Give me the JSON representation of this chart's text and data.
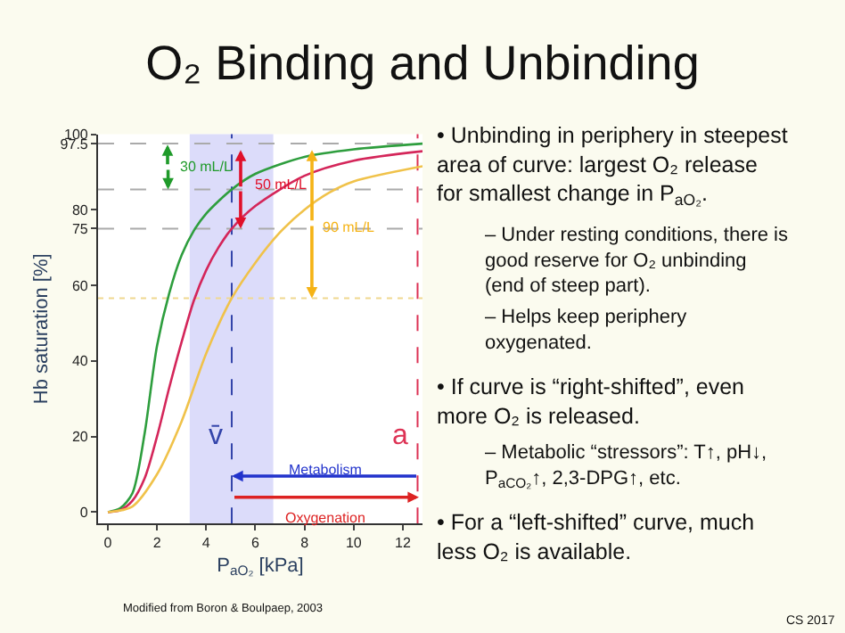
{
  "chart_data": {
    "type": "line",
    "title": "O₂ Binding and Unbinding",
    "xlabel": "P$_{aO₂}$ [kPa]",
    "ylabel": "Hb saturation [%]",
    "xlim": [
      -0.4,
      12.8
    ],
    "xticks": [
      0,
      2,
      4,
      6,
      8,
      10,
      12
    ],
    "ylim": [
      -3,
      100
    ],
    "yticks": [
      0,
      20,
      40,
      60,
      75,
      80,
      97.5,
      100
    ],
    "grid": false,
    "marker": "none",
    "line_style": "solid",
    "series": [
      {
        "color": "#2e9e3e",
        "x": [
          0,
          0.5,
          1,
          1.5,
          2,
          2.5,
          3,
          3.5,
          4,
          5.04,
          6,
          8,
          10,
          12.8
        ],
        "values": [
          0,
          1,
          5,
          21,
          44,
          58,
          68,
          74.5,
          79,
          85.4,
          89.5,
          94,
          96,
          97.5
        ]
      },
      {
        "color": "#d4265a",
        "x": [
          0,
          0.5,
          1,
          1.5,
          2,
          2.5,
          3,
          3.5,
          4,
          4.5,
          5.04,
          6,
          8,
          10,
          12.8
        ],
        "values": [
          0,
          0.5,
          3,
          9,
          20,
          33,
          45,
          56,
          64,
          70,
          75,
          81,
          89,
          93,
          95.5
        ]
      },
      {
        "color": "#f0c24a",
        "x": [
          0,
          1,
          2,
          3,
          4,
          5.04,
          6,
          7,
          8,
          9,
          10,
          12.8
        ],
        "values": [
          0,
          1.5,
          10,
          24,
          42,
          56.6,
          66,
          74,
          80,
          84.5,
          87.5,
          91.5
        ]
      }
    ],
    "ref_lines": [
      {
        "axis": "y",
        "value": 97.5,
        "color": "#aaaaaa",
        "line_style": "dashed"
      },
      {
        "axis": "y",
        "value": 85.4,
        "color": "#aaaaaa",
        "line_style": "dashed"
      },
      {
        "axis": "y",
        "value": 75,
        "color": "#aaaaaa",
        "line_style": "dashed"
      },
      {
        "axis": "y",
        "value": 56.6,
        "color": "#f0d890",
        "line_style": "dotted"
      },
      {
        "axis": "x",
        "value": 5.04,
        "label": "v̄",
        "color": "#3344aa",
        "line_style": "dashed"
      },
      {
        "axis": "x",
        "value": 12.6,
        "label": "a",
        "color": "#dd3355",
        "line_style": "dashed"
      }
    ],
    "bands": [
      {
        "axis": "x",
        "from": 3.33,
        "to": 6.73,
        "color": "#dcdcfa"
      }
    ],
    "annotations": [
      {
        "text": "30 mL/L",
        "x": 2.45,
        "y": 85.4
      },
      {
        "text": "50 mL/L",
        "x": 5.4,
        "y": 75
      },
      {
        "text": "90 mL/L",
        "x": 8.3,
        "y": 56.6
      },
      "Metabolism",
      "Oxygenation",
      "Modified from Boron & Boulpaep, 2003",
      "CS 2017",
      "• Unbinding in periphery in steepest\narea of curve: largest O₂ release\nfor smallest change in P$_{aO₂}$.",
      "– Under resting conditions, there is\ngood reserve for O₂ unbinding\n(end of steep part).",
      "– Helps keep periphery\noxygenated.",
      "• If curve is “right-shifted”, even\nmore O₂ is released.",
      "– Metabolic “stressors”: T↑, pH↓,\nP$_{aCO₂}$↑, 2,3-DPG↑, etc.",
      "• For a “left-shifted” curve, much\nless O₂ is available."
    ]
  }
}
